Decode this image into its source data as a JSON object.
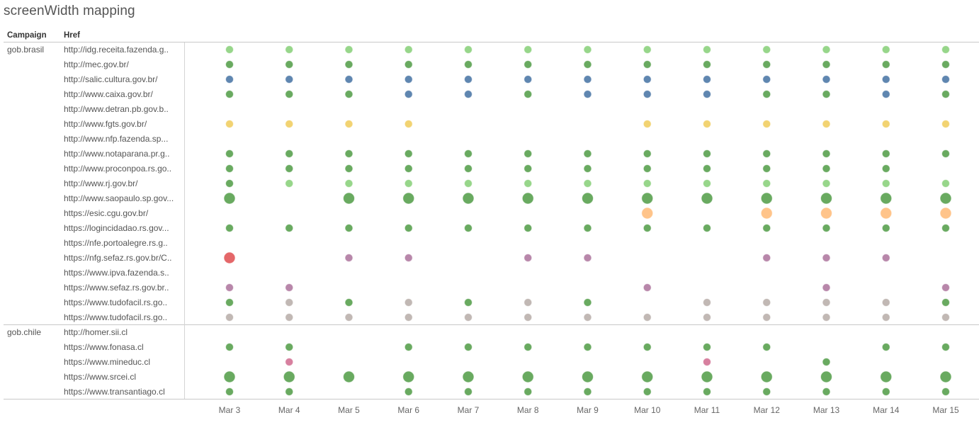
{
  "title": "screenWidth mapping",
  "headers": {
    "campaign": "Campaign",
    "href": "Href"
  },
  "chart_data": {
    "type": "scatter",
    "title": "screenWidth mapping",
    "x_labels": [
      "Mar 3",
      "Mar 4",
      "Mar 5",
      "Mar 6",
      "Mar 7",
      "Mar 8",
      "Mar 9",
      "Mar 10",
      "Mar 11",
      "Mar 12",
      "Mar 13",
      "Mar 14",
      "Mar 15"
    ],
    "colors": {
      "G": "#59a14f",
      "L": "#8cd17d",
      "B": "#4e79a7",
      "Y": "#f1ce63",
      "O": "#ffbe7d",
      "R": "#e15759",
      "P": "#b07aa1",
      "K": "#d37295",
      "S": "#bab0ac"
    },
    "groups": [
      {
        "campaign": "gob.brasil",
        "rows": [
          {
            "href": "http://idg.receita.fazenda.g..",
            "marks": [
              "L",
              "L",
              "L",
              "L",
              "L",
              "L",
              "L",
              "L",
              "L",
              "L",
              "L",
              "L",
              "L"
            ]
          },
          {
            "href": "http://mec.gov.br/",
            "marks": [
              "G",
              "G",
              "G",
              "G",
              "G",
              "G",
              "G",
              "G",
              "G",
              "G",
              "G",
              "G",
              "G"
            ]
          },
          {
            "href": "http://salic.cultura.gov.br/",
            "marks": [
              "B",
              "B",
              "B",
              "B",
              "B",
              "B",
              "B",
              "B",
              "B",
              "B",
              "B",
              "B",
              "B"
            ]
          },
          {
            "href": "http://www.caixa.gov.br/",
            "marks": [
              "G",
              "G",
              "G",
              "B",
              "B",
              "G",
              "B",
              "B",
              "B",
              "G",
              "G",
              "B",
              "G"
            ]
          },
          {
            "href": "http://www.detran.pb.gov.b..",
            "marks": [
              "",
              "",
              "",
              "",
              "",
              "",
              "",
              "",
              "",
              "",
              "",
              "",
              ""
            ]
          },
          {
            "href": "http://www.fgts.gov.br/",
            "marks": [
              "Y",
              "Y",
              "Y",
              "Y",
              "",
              "",
              "",
              "Y",
              "Y",
              "Y",
              "Y",
              "Y",
              "Y"
            ]
          },
          {
            "href": "http://www.nfp.fazenda.sp...",
            "marks": [
              "",
              "",
              "",
              "",
              "",
              "",
              "",
              "",
              "",
              "",
              "",
              "",
              ""
            ]
          },
          {
            "href": "http://www.notaparana.pr.g..",
            "marks": [
              "G",
              "G",
              "G",
              "G",
              "G",
              "G",
              "G",
              "G",
              "G",
              "G",
              "G",
              "G",
              "G"
            ]
          },
          {
            "href": "http://www.proconpoa.rs.go..",
            "marks": [
              "G",
              "G",
              "G",
              "G",
              "G",
              "G",
              "G",
              "G",
              "G",
              "G",
              "G",
              "G",
              ""
            ]
          },
          {
            "href": "http://www.rj.gov.br/",
            "marks": [
              "G",
              "L",
              "L",
              "L",
              "L",
              "L",
              "L",
              "L",
              "L",
              "L",
              "L",
              "L",
              "L"
            ]
          },
          {
            "href": "http://www.saopaulo.sp.gov...",
            "marks": [
              "G",
              "",
              "G",
              "G",
              "G",
              "G",
              "G",
              "G",
              "G",
              "G",
              "G",
              "G",
              "G"
            ],
            "size": [
              3,
              0,
              3,
              3,
              3,
              3,
              3,
              3,
              3,
              3,
              3,
              3,
              3
            ]
          },
          {
            "href": "https://esic.cgu.gov.br/",
            "marks": [
              "",
              "",
              "",
              "",
              "",
              "",
              "",
              "O",
              "",
              "O",
              "O",
              "O",
              "O"
            ],
            "size": [
              0,
              0,
              0,
              0,
              0,
              0,
              0,
              3,
              0,
              3,
              3,
              3,
              3
            ]
          },
          {
            "href": "https://logincidadao.rs.gov...",
            "marks": [
              "G",
              "G",
              "G",
              "G",
              "G",
              "G",
              "G",
              "G",
              "G",
              "G",
              "G",
              "G",
              "G"
            ]
          },
          {
            "href": "https://nfe.portoalegre.rs.g..",
            "marks": [
              "",
              "",
              "",
              "",
              "",
              "",
              "",
              "",
              "",
              "",
              "",
              "",
              ""
            ]
          },
          {
            "href": "https://nfg.sefaz.rs.gov.br/C..",
            "marks": [
              "R",
              "",
              "P",
              "P",
              "",
              "P",
              "P",
              "",
              "",
              "P",
              "P",
              "P",
              ""
            ],
            "size": [
              3,
              0,
              1,
              1,
              0,
              1,
              1,
              0,
              0,
              1,
              1,
              1,
              0
            ]
          },
          {
            "href": "https://www.ipva.fazenda.s..",
            "marks": [
              "",
              "",
              "",
              "",
              "",
              "",
              "",
              "",
              "",
              "",
              "",
              "",
              ""
            ]
          },
          {
            "href": "https://www.sefaz.rs.gov.br..",
            "marks": [
              "P",
              "P",
              "",
              "",
              "",
              "",
              "",
              "P",
              "",
              "",
              "P",
              "",
              "P"
            ]
          },
          {
            "href": "https://www.tudofacil.rs.go..",
            "marks": [
              "G",
              "S",
              "G",
              "S",
              "G",
              "S",
              "G",
              "",
              "S",
              "S",
              "S",
              "S",
              "G"
            ]
          },
          {
            "href": "https://www.tudofacil.rs.go..",
            "marks": [
              "S",
              "S",
              "S",
              "S",
              "S",
              "S",
              "S",
              "S",
              "S",
              "S",
              "S",
              "S",
              "S"
            ]
          }
        ]
      },
      {
        "campaign": "gob.chile",
        "rows": [
          {
            "href": "http://homer.sii.cl",
            "marks": [
              "",
              "",
              "",
              "",
              "",
              "",
              "",
              "",
              "",
              "",
              "",
              "",
              ""
            ]
          },
          {
            "href": "https://www.fonasa.cl",
            "marks": [
              "G",
              "G",
              "",
              "G",
              "G",
              "G",
              "G",
              "G",
              "G",
              "G",
              "",
              "G",
              "G"
            ]
          },
          {
            "href": "https://www.mineduc.cl",
            "marks": [
              "",
              "K",
              "",
              "",
              "",
              "",
              "",
              "",
              "K",
              "",
              "G",
              "",
              ""
            ]
          },
          {
            "href": "https://www.srcei.cl",
            "marks": [
              "G",
              "G",
              "G",
              "G",
              "G",
              "G",
              "G",
              "G",
              "G",
              "G",
              "G",
              "G",
              "G"
            ],
            "size": [
              3,
              3,
              3,
              3,
              3,
              3,
              3,
              3,
              3,
              3,
              3,
              3,
              3
            ]
          },
          {
            "href": "https://www.transantiago.cl",
            "marks": [
              "G",
              "G",
              "",
              "G",
              "G",
              "G",
              "G",
              "G",
              "G",
              "G",
              "G",
              "G",
              "G"
            ]
          }
        ]
      }
    ]
  }
}
